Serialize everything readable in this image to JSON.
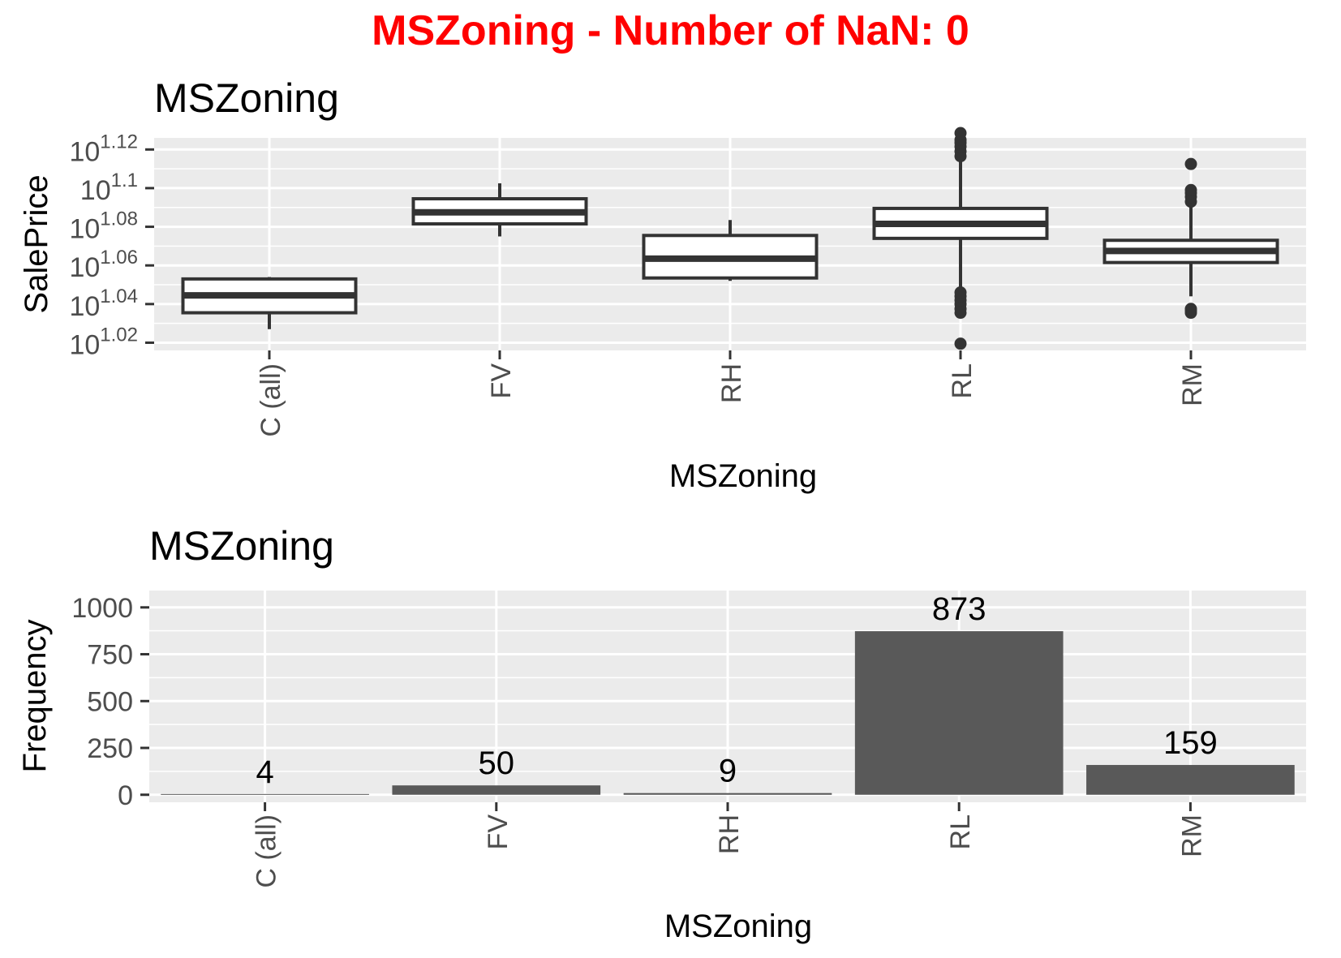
{
  "page_title": "MSZoning - Number of NaN: 0",
  "colors": {
    "title": "#ff0000",
    "panel": "#ebebeb",
    "grid": "#ffffff",
    "box_stroke": "#333333",
    "bar_fill": "#595959"
  },
  "chart_data": [
    {
      "type": "box",
      "title": "MSZoning",
      "xlabel": "MSZoning",
      "ylabel": "SalePrice",
      "y_scale": "log10 (values are exponents of 10)",
      "ylim": [
        1.016,
        1.126
      ],
      "y_ticks": [
        1.02,
        1.04,
        1.06,
        1.08,
        1.1,
        1.12
      ],
      "y_tick_labels": [
        {
          "base": "10",
          "exp": "1.02"
        },
        {
          "base": "10",
          "exp": "1.04"
        },
        {
          "base": "10",
          "exp": "1.06"
        },
        {
          "base": "10",
          "exp": "1.08"
        },
        {
          "base": "10",
          "exp": "1.1"
        },
        {
          "base": "10",
          "exp": "1.12"
        }
      ],
      "categories": [
        "C (all)",
        "FV",
        "RH",
        "RL",
        "RM"
      ],
      "boxes": [
        {
          "category": "C (all)",
          "whisker_low": 1.027,
          "q1": 1.0355,
          "median": 1.0445,
          "q3": 1.053,
          "whisker_high": 1.054,
          "outliers": []
        },
        {
          "category": "FV",
          "whisker_low": 1.075,
          "q1": 1.0815,
          "median": 1.0875,
          "q3": 1.0945,
          "whisker_high": 1.1025,
          "outliers": []
        },
        {
          "category": "RH",
          "whisker_low": 1.052,
          "q1": 1.0535,
          "median": 1.0635,
          "q3": 1.0755,
          "whisker_high": 1.0835,
          "outliers": []
        },
        {
          "category": "RL",
          "whisker_low": 1.039,
          "q1": 1.074,
          "median": 1.0815,
          "q3": 1.0895,
          "whisker_high": 1.1165,
          "outliers": [
            1.0195,
            1.0355,
            1.0375,
            1.04,
            1.042,
            1.044,
            1.046,
            1.1165,
            1.119,
            1.1215,
            1.1235,
            1.125,
            1.1285
          ]
        },
        {
          "category": "RM",
          "whisker_low": 1.044,
          "q1": 1.0615,
          "median": 1.0675,
          "q3": 1.073,
          "whisker_high": 1.0905,
          "outliers": [
            1.0355,
            1.0365,
            1.0375,
            1.093,
            1.0955,
            1.0975,
            1.099,
            1.1125
          ]
        }
      ]
    },
    {
      "type": "bar",
      "title": "MSZoning",
      "xlabel": "MSZoning",
      "ylabel": "Frequency",
      "ylim": [
        -40,
        1090
      ],
      "y_ticks": [
        0,
        250,
        500,
        750,
        1000
      ],
      "categories": [
        "C (all)",
        "FV",
        "RH",
        "RL",
        "RM"
      ],
      "values": [
        4,
        50,
        9,
        873,
        159
      ],
      "data_labels": [
        "4",
        "50",
        "9",
        "873",
        "159"
      ]
    }
  ]
}
